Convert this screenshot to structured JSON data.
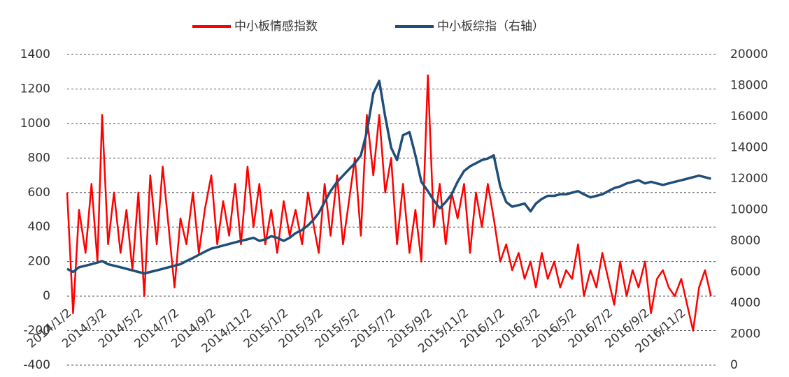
{
  "chart_data": {
    "type": "line",
    "x": [
      "2014/1/2",
      "2014/1/12",
      "2014/1/22",
      "2014/2/2",
      "2014/2/12",
      "2014/2/22",
      "2014/3/2",
      "2014/3/12",
      "2014/3/22",
      "2014/4/2",
      "2014/4/12",
      "2014/4/22",
      "2014/5/2",
      "2014/5/12",
      "2014/5/22",
      "2014/6/2",
      "2014/6/12",
      "2014/6/22",
      "2014/7/2",
      "2014/7/12",
      "2014/7/22",
      "2014/8/2",
      "2014/8/12",
      "2014/8/22",
      "2014/9/2",
      "2014/9/12",
      "2014/9/22",
      "2014/10/2",
      "2014/10/12",
      "2014/10/22",
      "2014/11/2",
      "2014/11/12",
      "2014/11/22",
      "2014/12/2",
      "2014/12/12",
      "2014/12/22",
      "2015/1/2",
      "2015/1/12",
      "2015/1/22",
      "2015/2/2",
      "2015/2/12",
      "2015/2/22",
      "2015/3/2",
      "2015/3/12",
      "2015/3/22",
      "2015/4/2",
      "2015/4/12",
      "2015/4/22",
      "2015/5/2",
      "2015/5/12",
      "2015/5/22",
      "2015/6/2",
      "2015/6/12",
      "2015/6/22",
      "2015/7/2",
      "2015/7/12",
      "2015/7/22",
      "2015/8/2",
      "2015/8/12",
      "2015/8/22",
      "2015/9/2",
      "2015/9/12",
      "2015/9/22",
      "2015/10/2",
      "2015/10/12",
      "2015/10/22",
      "2015/11/2",
      "2015/11/12",
      "2015/11/22",
      "2015/12/2",
      "2015/12/12",
      "2015/12/22",
      "2016/1/2",
      "2016/1/12",
      "2016/1/22",
      "2016/2/2",
      "2016/2/12",
      "2016/2/22",
      "2016/3/2",
      "2016/3/12",
      "2016/3/22",
      "2016/4/2",
      "2016/4/12",
      "2016/4/22",
      "2016/5/2",
      "2016/5/12",
      "2016/5/22",
      "2016/6/2",
      "2016/6/12",
      "2016/6/22",
      "2016/7/2",
      "2016/7/12",
      "2016/7/22",
      "2016/8/2",
      "2016/8/12",
      "2016/8/22",
      "2016/9/2",
      "2016/9/12",
      "2016/9/22",
      "2016/10/2",
      "2016/10/12",
      "2016/10/22",
      "2016/11/2",
      "2016/11/12",
      "2016/11/22",
      "2016/12/2",
      "2016/12/12",
      "2016/12/22"
    ],
    "xlim": [
      "2014/1/2",
      "2016/12/31"
    ],
    "xticks": [
      "2014/1/2",
      "2014/3/2",
      "2014/5/2",
      "2014/7/2",
      "2014/9/2",
      "2014/11/2",
      "2015/1/2",
      "2015/3/2",
      "2015/5/2",
      "2015/7/2",
      "2015/9/2",
      "2015/11/2",
      "2016/1/2",
      "2016/3/2",
      "2016/5/2",
      "2016/7/2",
      "2016/9/2",
      "2016/11/2"
    ],
    "series": [
      {
        "name": "中小板情感指数",
        "color": "#ff0000",
        "values": [
          600,
          -100,
          500,
          250,
          650,
          200,
          1050,
          300,
          600,
          250,
          500,
          150,
          600,
          0,
          700,
          300,
          750,
          400,
          50,
          450,
          300,
          600,
          250,
          500,
          700,
          300,
          550,
          350,
          650,
          300,
          750,
          400,
          650,
          300,
          500,
          250,
          550,
          350,
          500,
          300,
          600,
          400,
          250,
          650,
          350,
          700,
          300,
          550,
          800,
          350,
          1050,
          700,
          1050,
          600,
          800,
          300,
          650,
          250,
          500,
          200,
          1280,
          400,
          650,
          300,
          600,
          450,
          650,
          250,
          600,
          400,
          650,
          450,
          200,
          300,
          150,
          250,
          100,
          200,
          50,
          250,
          100,
          200,
          50,
          150,
          100,
          300,
          0,
          150,
          50,
          250,
          100,
          -50,
          200,
          0,
          150,
          50,
          200,
          -100,
          100,
          150,
          50,
          0,
          100,
          -50,
          -200,
          50,
          150,
          0
        ]
      },
      {
        "name": "中小板综指（右轴）",
        "color": "#1f4e79",
        "axis": "y2",
        "values": [
          6200,
          6000,
          6300,
          6400,
          6500,
          6600,
          6700,
          6500,
          6400,
          6300,
          6200,
          6100,
          6000,
          5900,
          6000,
          6100,
          6200,
          6300,
          6400,
          6500,
          6700,
          6900,
          7100,
          7300,
          7500,
          7600,
          7700,
          7800,
          7900,
          8000,
          8100,
          8200,
          8000,
          8100,
          8300,
          8200,
          8000,
          8200,
          8500,
          8700,
          9000,
          9400,
          9800,
          10500,
          11200,
          11800,
          12200,
          12600,
          13000,
          13500,
          15000,
          17500,
          18300,
          16000,
          14000,
          13200,
          14800,
          15000,
          13500,
          11800,
          11200,
          10600,
          10100,
          10500,
          11000,
          11800,
          12500,
          12800,
          13000,
          13200,
          13300,
          13500,
          11500,
          10500,
          10200,
          10300,
          10400,
          9900,
          10400,
          10700,
          10900,
          10900,
          11000,
          11000,
          11100,
          11200,
          11000,
          10800,
          10900,
          11000,
          11200,
          11400,
          11500,
          11700,
          11800,
          11900,
          11700,
          11800,
          11700,
          11600,
          11700,
          11800,
          11900,
          12000,
          12100,
          12200,
          12100,
          12000
        ]
      }
    ],
    "ylim": [
      -400,
      1400
    ],
    "yticks": [
      -400,
      -200,
      0,
      200,
      400,
      600,
      800,
      1000,
      1200,
      1400
    ],
    "y2lim": [
      0,
      20000
    ],
    "y2ticks": [
      0,
      2000,
      4000,
      6000,
      8000,
      10000,
      12000,
      14000,
      16000,
      18000,
      20000
    ],
    "grid": true
  }
}
